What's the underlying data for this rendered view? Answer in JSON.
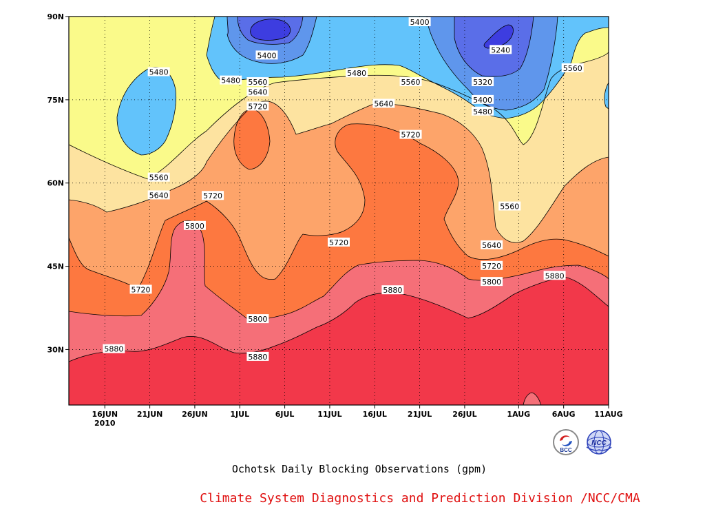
{
  "chart_data": {
    "type": "heatmap",
    "subtype": "filled-contour",
    "title": "Ochotsk Daily Blocking Observations (gpm)",
    "credit": "Climate System Diagnostics and Prediction Division /NCC/CMA",
    "x_axis": {
      "type": "date",
      "range": [
        "2010-06-12",
        "2010-08-11"
      ],
      "ticks": [
        {
          "label": "16JUN",
          "sublabel": "2010",
          "date": "2010-06-16"
        },
        {
          "label": "21JUN",
          "date": "2010-06-21"
        },
        {
          "label": "26JUN",
          "date": "2010-06-26"
        },
        {
          "label": "1JUL",
          "date": "2010-07-01"
        },
        {
          "label": "6JUL",
          "date": "2010-07-06"
        },
        {
          "label": "11JUL",
          "date": "2010-07-11"
        },
        {
          "label": "16JUL",
          "date": "2010-07-16"
        },
        {
          "label": "21JUL",
          "date": "2010-07-21"
        },
        {
          "label": "26JUL",
          "date": "2010-07-26"
        },
        {
          "label": "1AUG",
          "date": "2010-08-01"
        },
        {
          "label": "6AUG",
          "date": "2010-08-06"
        },
        {
          "label": "11AUG",
          "date": "2010-08-11"
        }
      ]
    },
    "y_axis": {
      "range": [
        20,
        90
      ],
      "ticks": [
        {
          "label": "30N",
          "value": 30
        },
        {
          "label": "45N",
          "value": 45
        },
        {
          "label": "60N",
          "value": 60
        },
        {
          "label": "75N",
          "value": 75
        },
        {
          "label": "90N",
          "value": 90
        }
      ]
    },
    "grid": "dotted",
    "contour_levels": [
      5240,
      5320,
      5400,
      5480,
      5560,
      5640,
      5720,
      5800,
      5880
    ],
    "level_colors": {
      "below_5240": "#3d3de0",
      "5240": "#5a6ee8",
      "5320": "#5f96ec",
      "5400": "#62c3fb",
      "5480": "#fafa8a",
      "5560": "#fde3a0",
      "5640": "#fda46a",
      "5720": "#fd7840",
      "5800": "#f56f78",
      "5880": "#f2384a"
    },
    "contour_labels": [
      {
        "text": "5400",
        "date": "2010-07-21",
        "lat": 89
      },
      {
        "text": "5400",
        "date": "2010-07-04",
        "lat": 83
      },
      {
        "text": "5240",
        "date": "2010-07-30",
        "lat": 84
      },
      {
        "text": "5480",
        "date": "2010-06-22",
        "lat": 80
      },
      {
        "text": "5480",
        "date": "2010-07-14",
        "lat": 79.8
      },
      {
        "text": "5480",
        "date": "2010-06-30",
        "lat": 78.5
      },
      {
        "text": "5560",
        "date": "2010-07-03",
        "lat": 78.2
      },
      {
        "text": "5560",
        "date": "2010-07-20",
        "lat": 78.2
      },
      {
        "text": "5560",
        "date": "2010-08-07",
        "lat": 80.7
      },
      {
        "text": "5320",
        "date": "2010-07-28",
        "lat": 78.2
      },
      {
        "text": "5640",
        "date": "2010-07-03",
        "lat": 76.4
      },
      {
        "text": "5400",
        "date": "2010-07-28",
        "lat": 75
      },
      {
        "text": "5720",
        "date": "2010-07-03",
        "lat": 73.8
      },
      {
        "text": "5640",
        "date": "2010-07-17",
        "lat": 74.3
      },
      {
        "text": "5480",
        "date": "2010-07-28",
        "lat": 72.9
      },
      {
        "text": "5720",
        "date": "2010-07-20",
        "lat": 68.7
      },
      {
        "text": "5560",
        "date": "2010-06-22",
        "lat": 61
      },
      {
        "text": "5640",
        "date": "2010-06-22",
        "lat": 57.8
      },
      {
        "text": "5720",
        "date": "2010-06-28",
        "lat": 57.7
      },
      {
        "text": "5560",
        "date": "2010-07-31",
        "lat": 55.8
      },
      {
        "text": "5800",
        "date": "2010-06-26",
        "lat": 52.3
      },
      {
        "text": "5720",
        "date": "2010-07-12",
        "lat": 49.3
      },
      {
        "text": "5640",
        "date": "2010-07-29",
        "lat": 48.8
      },
      {
        "text": "5720",
        "date": "2010-07-29",
        "lat": 45.1
      },
      {
        "text": "5880",
        "date": "2010-08-05",
        "lat": 43.3
      },
      {
        "text": "5720",
        "date": "2010-06-20",
        "lat": 40.8
      },
      {
        "text": "5880",
        "date": "2010-07-18",
        "lat": 40.7
      },
      {
        "text": "5800",
        "date": "2010-07-29",
        "lat": 42.2
      },
      {
        "text": "5800",
        "date": "2010-07-03",
        "lat": 35.5
      },
      {
        "text": "5880",
        "date": "2010-06-17",
        "lat": 30.1
      },
      {
        "text": "5880",
        "date": "2010-07-03",
        "lat": 28.7
      }
    ]
  },
  "logos": [
    {
      "name": "bcc-logo",
      "text": "BCC"
    },
    {
      "name": "ncc-logo",
      "text": "NCC"
    }
  ]
}
